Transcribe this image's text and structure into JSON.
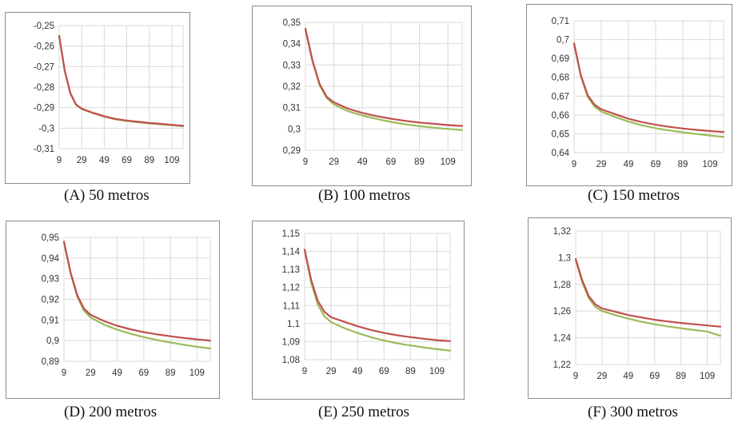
{
  "chart_data": [
    {
      "type": "line",
      "caption": "(A)  50 metros",
      "x_ticks": [
        "9",
        "29",
        "49",
        "69",
        "89",
        "109"
      ],
      "y_ticks": [
        "-0,25",
        "-0,26",
        "-0,27",
        "-0,28",
        "-0,29",
        "-0,3",
        "-0,31"
      ],
      "xlim": [
        9,
        119
      ],
      "ylim": [
        -0.31,
        -0.25
      ],
      "grid": true,
      "series": [
        {
          "color": "#c0504d",
          "x": [
            9,
            14,
            19,
            24,
            29,
            39,
            49,
            59,
            69,
            79,
            89,
            99,
            109,
            119
          ],
          "y": [
            -0.255,
            -0.272,
            -0.283,
            -0.2885,
            -0.2905,
            -0.2925,
            -0.2942,
            -0.2955,
            -0.2963,
            -0.2969,
            -0.2975,
            -0.2979,
            -0.2984,
            -0.2988
          ]
        },
        {
          "color": "#9bbb59",
          "x": [
            9,
            14,
            19,
            24,
            29,
            39,
            49,
            59,
            69,
            79,
            89,
            99,
            109,
            119
          ],
          "y": [
            -0.2553,
            -0.2723,
            -0.2832,
            -0.2887,
            -0.2907,
            -0.2927,
            -0.2944,
            -0.2957,
            -0.2965,
            -0.2971,
            -0.2977,
            -0.2981,
            -0.2986,
            -0.2991
          ]
        }
      ]
    },
    {
      "type": "line",
      "caption": "(B)  100 metros",
      "x_ticks": [
        "9",
        "29",
        "49",
        "69",
        "89",
        "109"
      ],
      "y_ticks": [
        "0,35",
        "0,34",
        "0,33",
        "0,32",
        "0,31",
        "0,3",
        "0,29"
      ],
      "xlim": [
        9,
        119
      ],
      "ylim": [
        0.29,
        0.35
      ],
      "grid": true,
      "series": [
        {
          "color": "#c0504d",
          "x": [
            9,
            14,
            19,
            24,
            29,
            39,
            49,
            59,
            69,
            79,
            89,
            99,
            109,
            119
          ],
          "y": [
            0.347,
            0.332,
            0.321,
            0.315,
            0.3125,
            0.3095,
            0.3075,
            0.306,
            0.3048,
            0.3038,
            0.303,
            0.3024,
            0.3018,
            0.3014
          ]
        },
        {
          "color": "#9bbb59",
          "x": [
            9,
            14,
            19,
            24,
            29,
            39,
            49,
            59,
            69,
            79,
            89,
            99,
            109,
            119
          ],
          "y": [
            0.3465,
            0.3315,
            0.3205,
            0.3145,
            0.3115,
            0.3083,
            0.3063,
            0.3047,
            0.3033,
            0.3022,
            0.3013,
            0.3006,
            0.3,
            0.2995
          ]
        }
      ]
    },
    {
      "type": "line",
      "caption": "(C)  150 metros",
      "x_ticks": [
        "9",
        "29",
        "49",
        "69",
        "89",
        "109"
      ],
      "y_ticks": [
        "0,71",
        "0,7",
        "0,69",
        "0,68",
        "0,67",
        "0,66",
        "0,65",
        "0,64"
      ],
      "xlim": [
        9,
        119
      ],
      "ylim": [
        0.64,
        0.71
      ],
      "grid": true,
      "series": [
        {
          "color": "#c0504d",
          "x": [
            9,
            14,
            19,
            24,
            29,
            39,
            49,
            59,
            69,
            79,
            89,
            99,
            109,
            119
          ],
          "y": [
            0.698,
            0.681,
            0.6705,
            0.6655,
            0.663,
            0.6605,
            0.658,
            0.6562,
            0.6548,
            0.6537,
            0.6528,
            0.6521,
            0.6515,
            0.651
          ]
        },
        {
          "color": "#9bbb59",
          "x": [
            9,
            14,
            19,
            24,
            29,
            39,
            49,
            59,
            69,
            79,
            89,
            99,
            109,
            119
          ],
          "y": [
            0.6975,
            0.6805,
            0.6697,
            0.6645,
            0.6618,
            0.659,
            0.6565,
            0.6545,
            0.653,
            0.6518,
            0.6508,
            0.6499,
            0.6491,
            0.6483
          ]
        }
      ]
    },
    {
      "type": "line",
      "caption": "(D)  200 metros",
      "x_ticks": [
        "9",
        "29",
        "49",
        "69",
        "89",
        "109"
      ],
      "y_ticks": [
        "0,95",
        "0,94",
        "0,93",
        "0,92",
        "0,91",
        "0,9",
        "0,89"
      ],
      "xlim": [
        9,
        119
      ],
      "ylim": [
        0.89,
        0.95
      ],
      "grid": true,
      "series": [
        {
          "color": "#c0504d",
          "x": [
            9,
            14,
            19,
            24,
            29,
            39,
            49,
            59,
            69,
            79,
            89,
            99,
            109,
            119
          ],
          "y": [
            0.948,
            0.933,
            0.922,
            0.9155,
            0.9125,
            0.9095,
            0.9072,
            0.9055,
            0.9041,
            0.903,
            0.9021,
            0.9013,
            0.9006,
            0.9
          ]
        },
        {
          "color": "#9bbb59",
          "x": [
            9,
            14,
            19,
            24,
            29,
            39,
            49,
            59,
            69,
            79,
            89,
            99,
            109,
            119
          ],
          "y": [
            0.9475,
            0.9325,
            0.9213,
            0.9145,
            0.9112,
            0.9078,
            0.9053,
            0.9033,
            0.9017,
            0.9003,
            0.8991,
            0.898,
            0.897,
            0.8962
          ]
        }
      ]
    },
    {
      "type": "line",
      "caption": "(E)  250 metros",
      "x_ticks": [
        "9",
        "29",
        "49",
        "69",
        "89",
        "109"
      ],
      "y_ticks": [
        "1,15",
        "1,14",
        "1,13",
        "1,12",
        "1,11",
        "1,1",
        "1,09",
        "1,08"
      ],
      "xlim": [
        9,
        119
      ],
      "ylim": [
        1.08,
        1.15
      ],
      "grid": true,
      "series": [
        {
          "color": "#c0504d",
          "x": [
            9,
            14,
            19,
            24,
            29,
            39,
            49,
            59,
            69,
            79,
            89,
            99,
            109,
            119
          ],
          "y": [
            1.141,
            1.124,
            1.1125,
            1.1065,
            1.1035,
            1.101,
            1.0985,
            1.0965,
            1.0948,
            1.0935,
            1.0925,
            1.0916,
            1.0908,
            1.0903
          ]
        },
        {
          "color": "#9bbb59",
          "x": [
            9,
            14,
            19,
            24,
            29,
            39,
            49,
            59,
            69,
            79,
            89,
            99,
            109,
            119
          ],
          "y": [
            1.1405,
            1.1225,
            1.1105,
            1.104,
            1.1008,
            1.0975,
            1.0948,
            1.0925,
            1.0906,
            1.0891,
            1.0879,
            1.0868,
            1.0858,
            1.085
          ]
        }
      ]
    },
    {
      "type": "line",
      "caption": "(F)  300 metros",
      "x_ticks": [
        "9",
        "29",
        "49",
        "69",
        "89",
        "109"
      ],
      "y_ticks": [
        "1,32",
        "1,3",
        "1,28",
        "1,26",
        "1,24",
        "1,22"
      ],
      "xlim": [
        9,
        119
      ],
      "ylim": [
        1.22,
        1.32
      ],
      "grid": true,
      "series": [
        {
          "color": "#c0504d",
          "x": [
            9,
            14,
            19,
            24,
            29,
            39,
            49,
            59,
            69,
            79,
            89,
            99,
            109,
            119
          ],
          "y": [
            1.299,
            1.283,
            1.271,
            1.265,
            1.262,
            1.2595,
            1.257,
            1.2552,
            1.2535,
            1.2522,
            1.2511,
            1.2501,
            1.2492,
            1.2483
          ]
        },
        {
          "color": "#9bbb59",
          "x": [
            9,
            14,
            19,
            24,
            29,
            39,
            49,
            59,
            69,
            79,
            89,
            99,
            109,
            119
          ],
          "y": [
            1.2985,
            1.2815,
            1.2695,
            1.263,
            1.26,
            1.257,
            1.2543,
            1.252,
            1.2501,
            1.2485,
            1.2471,
            1.2458,
            1.2447,
            1.2415
          ]
        }
      ]
    }
  ]
}
